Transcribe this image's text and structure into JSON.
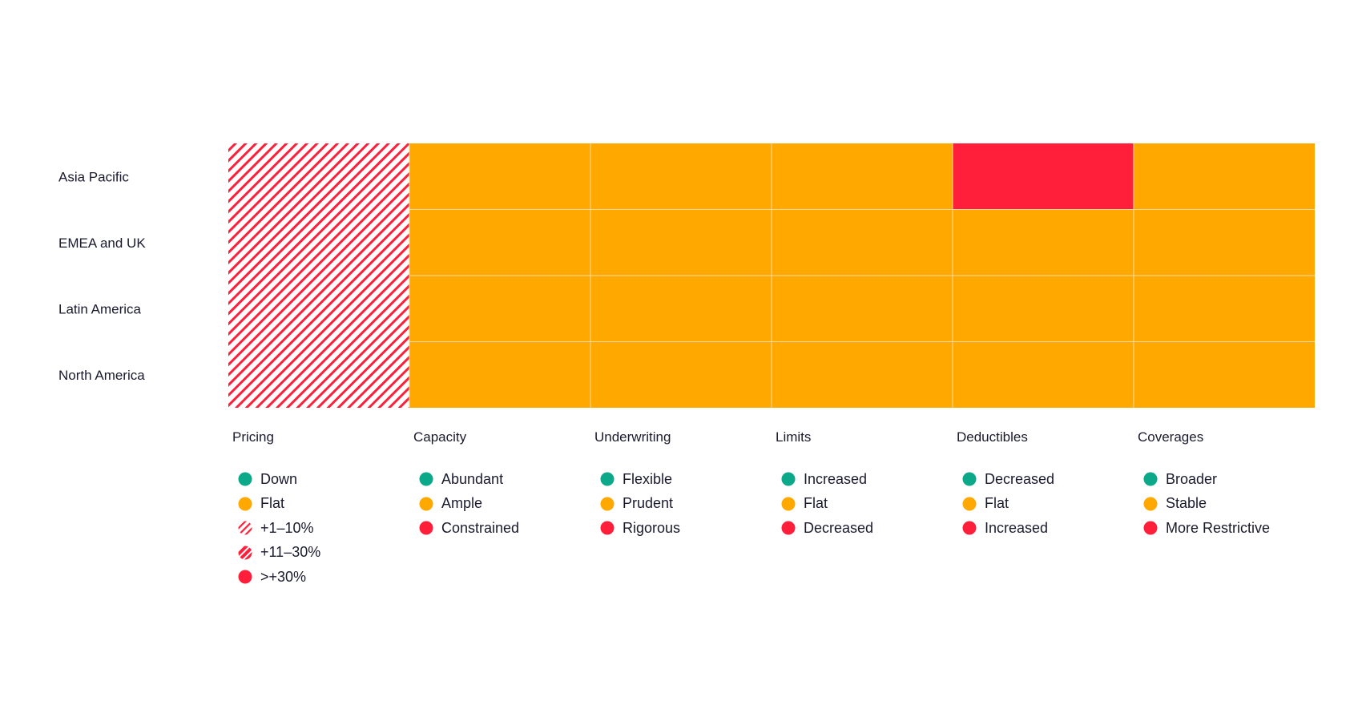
{
  "chart_data": {
    "type": "heatmap",
    "rows": [
      "Asia Pacific",
      "EMEA and UK",
      "Latin America",
      "North America"
    ],
    "columns": [
      "Pricing",
      "Capacity",
      "Underwriting",
      "Limits",
      "Deductibles",
      "Coverages"
    ],
    "cells": [
      [
        "+1–10%",
        "Ample",
        "Prudent",
        "Flat",
        "Increased",
        "Stable"
      ],
      [
        "+1–10%",
        "Ample",
        "Prudent",
        "Flat",
        "Flat",
        "Stable"
      ],
      [
        "+1–10%",
        "Ample",
        "Prudent",
        "Flat",
        "Flat",
        "Stable"
      ],
      [
        "+1–10%",
        "Ample",
        "Prudent",
        "Flat",
        "Flat",
        "Stable"
      ]
    ],
    "legend": [
      {
        "title": "Pricing",
        "items": [
          {
            "label": "Down",
            "style": "green"
          },
          {
            "label": "Flat",
            "style": "amber"
          },
          {
            "label": "+1–10%",
            "style": "hatch-light"
          },
          {
            "label": "+11–30%",
            "style": "hatch-heavy"
          },
          {
            "label": ">+30%",
            "style": "red"
          }
        ]
      },
      {
        "title": "Capacity",
        "items": [
          {
            "label": "Abundant",
            "style": "green"
          },
          {
            "label": "Ample",
            "style": "amber"
          },
          {
            "label": "Constrained",
            "style": "red"
          }
        ]
      },
      {
        "title": "Underwriting",
        "items": [
          {
            "label": "Flexible",
            "style": "green"
          },
          {
            "label": "Prudent",
            "style": "amber"
          },
          {
            "label": "Rigorous",
            "style": "red"
          }
        ]
      },
      {
        "title": "Limits",
        "items": [
          {
            "label": "Increased",
            "style": "green"
          },
          {
            "label": "Flat",
            "style": "amber"
          },
          {
            "label": "Decreased",
            "style": "red"
          }
        ]
      },
      {
        "title": "Deductibles",
        "items": [
          {
            "label": "Decreased",
            "style": "green"
          },
          {
            "label": "Flat",
            "style": "amber"
          },
          {
            "label": "Increased",
            "style": "red"
          }
        ]
      },
      {
        "title": "Coverages",
        "items": [
          {
            "label": "Broader",
            "style": "green"
          },
          {
            "label": "Stable",
            "style": "amber"
          },
          {
            "label": "More Restrictive",
            "style": "red"
          }
        ]
      }
    ],
    "colors": {
      "green": "#0ba88a",
      "amber": "#ffa800",
      "red": "#ff1f3a",
      "grid": "#f5d9a0",
      "text": "#1a1a2e"
    }
  }
}
